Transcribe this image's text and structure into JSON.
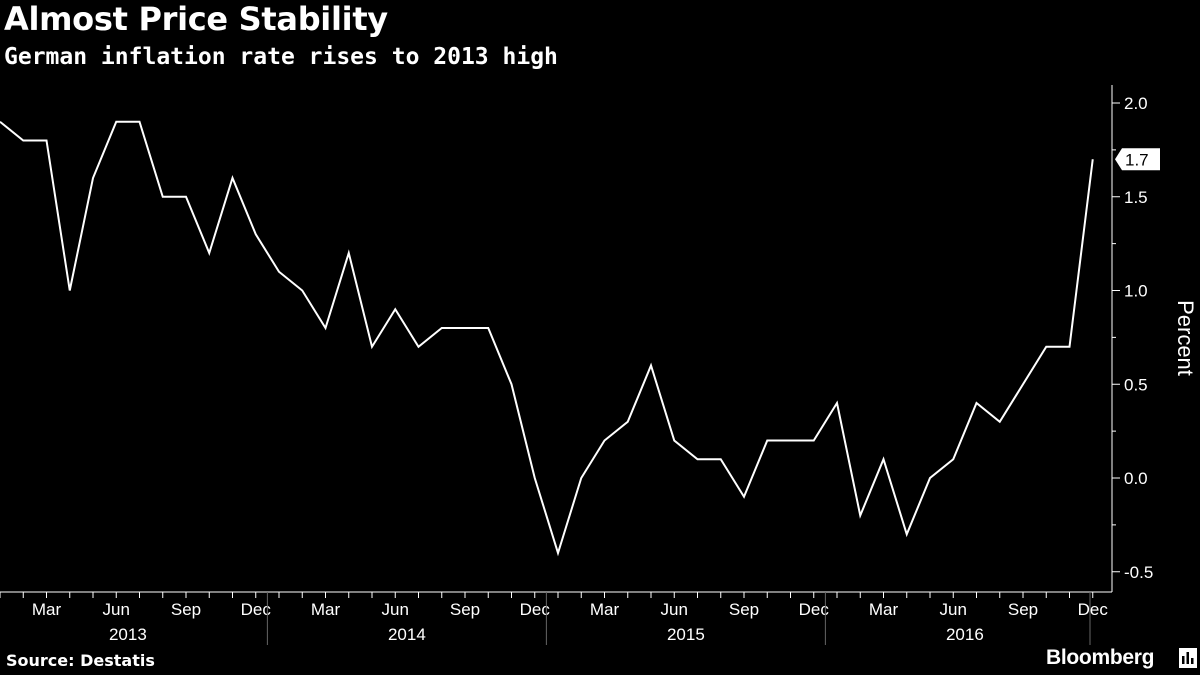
{
  "title": "Almost Price Stability",
  "subtitle": "German inflation rate rises to 2013 high",
  "source": "Source: Destatis",
  "brand": "Bloomberg",
  "chart_data": {
    "type": "line",
    "ylabel": "Percent",
    "ylim": [
      -0.5,
      2.0
    ],
    "yticks": [
      "2.0",
      "1.5",
      "1.0",
      "0.5",
      "0.0",
      "-0.5"
    ],
    "ytick_values": [
      2.0,
      1.5,
      1.0,
      0.5,
      0.0,
      -0.5
    ],
    "x_start": "2013-01",
    "x_end": "2016-12",
    "xtick_labels": [
      "Mar",
      "Jun",
      "Sep",
      "Dec",
      "Mar",
      "Jun",
      "Sep",
      "Dec",
      "Mar",
      "Jun",
      "Sep",
      "Dec",
      "Mar",
      "Jun",
      "Sep",
      "Dec"
    ],
    "year_labels": [
      "2013",
      "2014",
      "2015",
      "2016"
    ],
    "last_value_label": "1.7",
    "grid": false,
    "line_color": "#ffffff",
    "background_color": "#000000",
    "series": [
      {
        "x": [
          "2013-01",
          "2013-02",
          "2013-03",
          "2013-04",
          "2013-05",
          "2013-06",
          "2013-07",
          "2013-08",
          "2013-09",
          "2013-10",
          "2013-11",
          "2013-12",
          "2014-01",
          "2014-02",
          "2014-03",
          "2014-04",
          "2014-05",
          "2014-06",
          "2014-07",
          "2014-08",
          "2014-09",
          "2014-10",
          "2014-11",
          "2014-12",
          "2015-01",
          "2015-02",
          "2015-03",
          "2015-04",
          "2015-05",
          "2015-06",
          "2015-07",
          "2015-08",
          "2015-09",
          "2015-10",
          "2015-11",
          "2015-12",
          "2016-01",
          "2016-02",
          "2016-03",
          "2016-04",
          "2016-05",
          "2016-06",
          "2016-07",
          "2016-08",
          "2016-09",
          "2016-10",
          "2016-11",
          "2016-12"
        ],
        "values": [
          1.9,
          1.8,
          1.8,
          1.0,
          1.6,
          1.9,
          1.9,
          1.5,
          1.5,
          1.2,
          1.6,
          1.3,
          1.1,
          1.0,
          0.8,
          1.2,
          0.7,
          0.9,
          0.7,
          0.8,
          0.8,
          0.8,
          0.5,
          0.0,
          -0.4,
          0.0,
          0.2,
          0.3,
          0.6,
          0.2,
          0.1,
          0.1,
          -0.1,
          0.2,
          0.2,
          0.2,
          0.4,
          -0.2,
          0.1,
          -0.3,
          0.0,
          0.1,
          0.4,
          0.3,
          0.5,
          0.7,
          0.7,
          1.7
        ]
      }
    ]
  }
}
